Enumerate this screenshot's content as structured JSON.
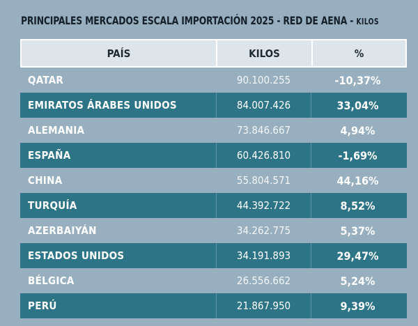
{
  "title": {
    "main": "PRINCIPALES MERCADOS ESCALA IMPORTACIÓN 2025 - RED DE AENA - ",
    "unit": "KILOS"
  },
  "table": {
    "headers": [
      "PAÍS",
      "KILOS",
      "%"
    ],
    "rows": [
      {
        "pais": "QATAR",
        "kilos": "90.100.255",
        "pct": "-10,37%"
      },
      {
        "pais": "EMIRATOS ÁRABES UNIDOS",
        "kilos": "84.007.426",
        "pct": "33,04%"
      },
      {
        "pais": "ALEMANIA",
        "kilos": "73.846.667",
        "pct": "4,94%"
      },
      {
        "pais": "ESPAÑA",
        "kilos": "60.426.810",
        "pct": "-1,69%"
      },
      {
        "pais": "CHINA",
        "kilos": "55.804.571",
        "pct": "44,16%"
      },
      {
        "pais": "TURQUÍA",
        "kilos": "44.392.722",
        "pct": "8,52%"
      },
      {
        "pais": "AZERBAIYÁN",
        "kilos": "34.262.775",
        "pct": "5,37%"
      },
      {
        "pais": "ESTADOS UNIDOS",
        "kilos": "34.191.893",
        "pct": "29,47%"
      },
      {
        "pais": "BÉLGICA",
        "kilos": "26.556.662",
        "pct": "5,24%"
      },
      {
        "pais": "PERÚ",
        "kilos": "21.867.950",
        "pct": "9,39%"
      }
    ]
  },
  "colors": {
    "background": "#97afbf",
    "row_dark": "#2e7487",
    "header_bg": "#dde5eb"
  }
}
